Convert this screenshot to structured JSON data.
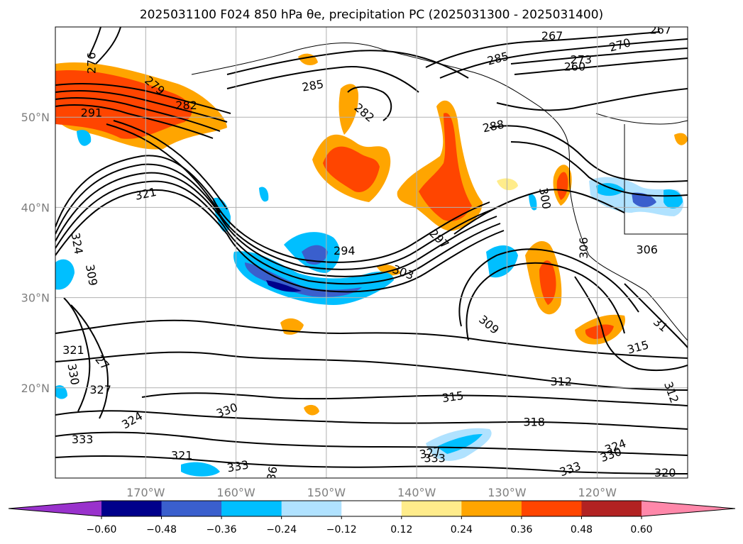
{
  "title_text": "2025031100 F024 850 hPa θe, precipitation PC (2025031300 - 2025031400)",
  "chart_data": {
    "type": "contour-map",
    "title": "2025031100 F024 850 hPa θe, precipitation PC (2025031300 - 2025031400)",
    "lon_range": [
      -180,
      -110
    ],
    "lat_range": [
      10,
      60
    ],
    "lon_ticks": [
      {
        "value": -170,
        "label": "170°W"
      },
      {
        "value": -160,
        "label": "160°W"
      },
      {
        "value": -150,
        "label": "150°W"
      },
      {
        "value": -140,
        "label": "140°W"
      },
      {
        "value": -130,
        "label": "130°W"
      },
      {
        "value": -120,
        "label": "120°W"
      }
    ],
    "lat_ticks": [
      {
        "value": 20,
        "label": "20°N"
      },
      {
        "value": 30,
        "label": "30°N"
      },
      {
        "value": 40,
        "label": "40°N"
      },
      {
        "value": 50,
        "label": "50°N"
      }
    ],
    "grid": true,
    "colorbar": {
      "extend": "both",
      "levels": [
        -0.6,
        -0.48,
        -0.36,
        -0.24,
        -0.12,
        0.12,
        0.24,
        0.36,
        0.48,
        0.6
      ],
      "tick_labels": [
        "−0.60",
        "−0.48",
        "−0.36",
        "−0.24",
        "−0.12",
        "0.12",
        "0.24",
        "0.36",
        "0.48",
        "0.60"
      ],
      "colors": [
        "#9932cc",
        "#00008b",
        "#3a5fcd",
        "#00bfff",
        "#b0e2ff",
        "#ffffff",
        "#ffec8b",
        "#ffa500",
        "#ff4500",
        "#b22222",
        "#ff88aa"
      ]
    },
    "contour_labels": [
      {
        "text": "276",
        "lon": -176.0,
        "lat": 56.0,
        "rot": 90
      },
      {
        "text": "279",
        "lon": -169.0,
        "lat": 53.5,
        "rot": -40
      },
      {
        "text": "282",
        "lon": -165.5,
        "lat": 51.3,
        "rot": 0
      },
      {
        "text": "291",
        "lon": -176.0,
        "lat": 50.5,
        "rot": 0
      },
      {
        "text": "285",
        "lon": -151.5,
        "lat": 53.5,
        "rot": 10
      },
      {
        "text": "282",
        "lon": -145.8,
        "lat": 50.5,
        "rot": -40
      },
      {
        "text": "267",
        "lon": -125.0,
        "lat": 59.0,
        "rot": 0
      },
      {
        "text": "267",
        "lon": -113.0,
        "lat": 59.7,
        "rot": 0
      },
      {
        "text": "270",
        "lon": -117.5,
        "lat": 58.0,
        "rot": 15
      },
      {
        "text": "285",
        "lon": -131.0,
        "lat": 56.5,
        "rot": 15
      },
      {
        "text": "273",
        "lon": -121.8,
        "lat": 56.4,
        "rot": 0
      },
      {
        "text": "260",
        "lon": -122.5,
        "lat": 55.6,
        "rot": 0
      },
      {
        "text": "288",
        "lon": -131.5,
        "lat": 49.0,
        "rot": 12
      },
      {
        "text": "321",
        "lon": -170.0,
        "lat": 41.5,
        "rot": 12
      },
      {
        "text": "294",
        "lon": -148.0,
        "lat": 35.2,
        "rot": 0
      },
      {
        "text": "297",
        "lon": -137.5,
        "lat": 36.5,
        "rot": -45
      },
      {
        "text": "303",
        "lon": -141.5,
        "lat": 32.8,
        "rot": -20
      },
      {
        "text": "309",
        "lon": -176.0,
        "lat": 32.5,
        "rot": -80
      },
      {
        "text": "306",
        "lon": -121.5,
        "lat": 35.5,
        "rot": 90
      },
      {
        "text": "300",
        "lon": -125.8,
        "lat": 41.0,
        "rot": -80
      },
      {
        "text": "306",
        "lon": -114.5,
        "lat": 35.3,
        "rot": 0
      },
      {
        "text": "309",
        "lon": -132.0,
        "lat": 27.0,
        "rot": -40
      },
      {
        "text": "324",
        "lon": -177.6,
        "lat": 36.0,
        "rot": -80
      },
      {
        "text": "321",
        "lon": -178.0,
        "lat": 24.2,
        "rot": 0
      },
      {
        "text": "330",
        "lon": -178.0,
        "lat": 21.5,
        "rot": -80
      },
      {
        "text": "327",
        "lon": -175.0,
        "lat": 19.8,
        "rot": 0
      },
      {
        "text": "324",
        "lon": -171.5,
        "lat": 16.4,
        "rot": 30
      },
      {
        "text": "333",
        "lon": -177.0,
        "lat": 14.3,
        "rot": 0
      },
      {
        "text": "321",
        "lon": -166.0,
        "lat": 12.5,
        "rot": 0
      },
      {
        "text": "330",
        "lon": -161.0,
        "lat": 17.5,
        "rot": 20
      },
      {
        "text": "333",
        "lon": -159.8,
        "lat": 11.3,
        "rot": 10
      },
      {
        "text": "315",
        "lon": -136.0,
        "lat": 19.0,
        "rot": 8
      },
      {
        "text": "312",
        "lon": -124.0,
        "lat": 20.7,
        "rot": 0
      },
      {
        "text": "318",
        "lon": -127.0,
        "lat": 16.2,
        "rot": 0
      },
      {
        "text": "327",
        "lon": -138.5,
        "lat": 12.8,
        "rot": 10
      },
      {
        "text": "333",
        "lon": -138.0,
        "lat": 12.2,
        "rot": 0
      },
      {
        "text": "324",
        "lon": -118.0,
        "lat": 13.5,
        "rot": 20
      },
      {
        "text": "330",
        "lon": -118.5,
        "lat": 12.6,
        "rot": 20
      },
      {
        "text": "333",
        "lon": -123.0,
        "lat": 11.0,
        "rot": 20
      },
      {
        "text": "315",
        "lon": -115.5,
        "lat": 24.5,
        "rot": 15
      },
      {
        "text": "312",
        "lon": -111.8,
        "lat": 19.5,
        "rot": -70
      },
      {
        "text": "320",
        "lon": -112.5,
        "lat": 10.6,
        "rot": 0
      },
      {
        "text": "31",
        "lon": -113.0,
        "lat": 27.0,
        "rot": -40
      },
      {
        "text": "36",
        "lon": -156.0,
        "lat": 10.5,
        "rot": 80
      },
      {
        "text": "27",
        "lon": -174.8,
        "lat": 22.8,
        "rot": -50
      }
    ]
  }
}
